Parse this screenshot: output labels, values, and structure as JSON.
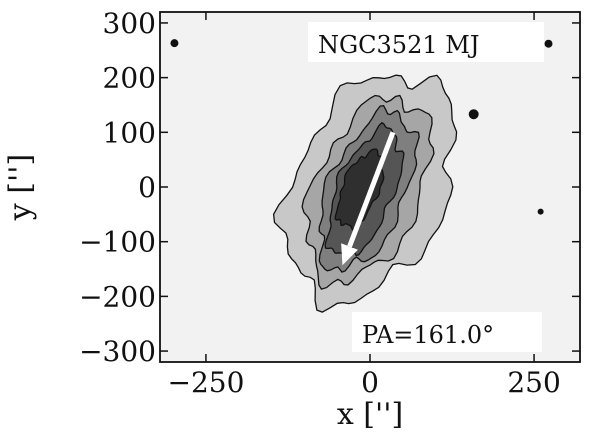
{
  "chart_data": {
    "type": "contour",
    "xlabel": "x ['']",
    "ylabel": "y ['']",
    "xlim": [
      -320,
      320
    ],
    "ylim": [
      -320,
      320
    ],
    "x_ticks": [
      -250,
      0,
      250
    ],
    "y_ticks": [
      300,
      200,
      100,
      0,
      -100,
      -200,
      -300
    ],
    "x_tick_labels": [
      "−250",
      "0",
      "250"
    ],
    "y_tick_labels": [
      "300",
      "200",
      "100",
      "0",
      "−100",
      "−200",
      "−300"
    ],
    "galaxy_label": "NGC3521 MJ",
    "pa_label": "PA=161.0°",
    "position_angle_deg": 161.0,
    "arrow": {
      "start": [
        35,
        100
      ],
      "end": [
        -42,
        -143
      ]
    },
    "contours": [
      {
        "level": 1,
        "center": [
          0,
          0
        ],
        "semi_major": 215,
        "semi_minor": 118,
        "fill": "#c8c8c8"
      },
      {
        "level": 2,
        "center": [
          -3,
          -5
        ],
        "semi_major": 175,
        "semi_minor": 82,
        "fill": "#a6a6a6"
      },
      {
        "level": 3,
        "center": [
          -5,
          -8
        ],
        "semi_major": 150,
        "semi_minor": 60,
        "fill": "#7f7f7f"
      },
      {
        "level": 4,
        "center": [
          -8,
          -10
        ],
        "semi_major": 120,
        "semi_minor": 44,
        "fill": "#555555"
      },
      {
        "level": 5,
        "center": [
          -15,
          -5
        ],
        "semi_major": 72,
        "semi_minor": 28,
        "fill": "#2f2f2f"
      }
    ],
    "point_sources": [
      {
        "x": -298,
        "y": 263,
        "r": 4
      },
      {
        "x": 272,
        "y": 262,
        "r": 4
      },
      {
        "x": 158,
        "y": 133,
        "r": 5
      },
      {
        "x": 260,
        "y": -45,
        "r": 3
      }
    ],
    "colors": {
      "background": "#f2f2f2",
      "arrow": "#ffffff",
      "contour_line": "#111111"
    }
  }
}
